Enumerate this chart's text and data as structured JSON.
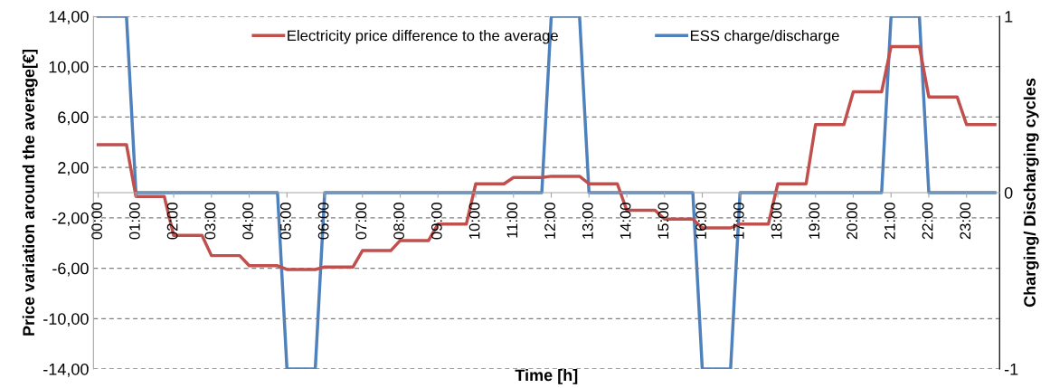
{
  "chart_data": {
    "type": "line",
    "xlabel": "Time [h]",
    "ylabel": "Price variation around the average[€]",
    "y2label": "Charging/ Discharging cycles",
    "categories": [
      "00:00",
      null,
      null,
      null,
      "01:00",
      null,
      null,
      null,
      "02:00",
      null,
      null,
      null,
      "03:00",
      null,
      null,
      null,
      "04:00",
      null,
      null,
      null,
      "05:00",
      null,
      null,
      null,
      "06:00",
      null,
      null,
      null,
      "07:00",
      null,
      null,
      null,
      "08:00",
      null,
      null,
      null,
      "09:00",
      null,
      null,
      null,
      "10:00",
      null,
      null,
      null,
      "11:00",
      null,
      null,
      null,
      "12:00",
      null,
      null,
      null,
      "13:00",
      null,
      null,
      null,
      "14:00",
      null,
      null,
      null,
      "15:00",
      null,
      null,
      null,
      "16:00",
      null,
      null,
      null,
      "17:00",
      null,
      null,
      null,
      "18:00",
      null,
      null,
      null,
      "19:00",
      null,
      null,
      null,
      "20:00",
      null,
      null,
      null,
      "21:00",
      null,
      null,
      null,
      "22:00",
      null,
      null,
      null,
      "23:00",
      null,
      null,
      null
    ],
    "series": [
      {
        "name": "Electricity price difference to the average",
        "color": "#c0504d",
        "values": [
          3.8,
          3.8,
          3.8,
          3.8,
          -0.3,
          -0.3,
          -0.3,
          -0.3,
          -3.4,
          -3.4,
          -3.4,
          -3.4,
          -5.0,
          -5.0,
          -5.0,
          -5.0,
          -5.8,
          -5.8,
          -5.8,
          -5.8,
          -6.1,
          -6.1,
          -6.1,
          -6.1,
          -5.9,
          -5.9,
          -5.9,
          -5.9,
          -4.6,
          -4.6,
          -4.6,
          -4.6,
          -3.8,
          -3.8,
          -3.8,
          -3.8,
          -2.5,
          -2.5,
          -2.5,
          -2.5,
          0.7,
          0.7,
          0.7,
          0.7,
          1.2,
          1.2,
          1.2,
          1.2,
          1.3,
          1.3,
          1.3,
          1.3,
          0.7,
          0.7,
          0.7,
          0.7,
          -1.4,
          -1.4,
          -1.4,
          -1.4,
          -2.1,
          -2.1,
          -2.1,
          -2.1,
          -2.8,
          -2.8,
          -2.8,
          -2.8,
          -2.5,
          -2.5,
          -2.5,
          -2.5,
          0.7,
          0.7,
          0.7,
          0.7,
          5.4,
          5.4,
          5.4,
          5.4,
          8.0,
          8.0,
          8.0,
          8.0,
          11.6,
          11.6,
          11.6,
          11.6,
          7.6,
          7.6,
          7.6,
          7.6,
          5.4,
          5.4,
          5.4,
          5.4
        ]
      },
      {
        "name": "ESS charge/discharge",
        "color": "#4f81bd",
        "axis": "y2",
        "values": [
          1,
          1,
          1,
          1,
          0,
          0,
          0,
          0,
          0,
          0,
          0,
          0,
          0,
          0,
          0,
          0,
          0,
          0,
          0,
          0,
          -1,
          -1,
          -1,
          -1,
          0,
          0,
          0,
          0,
          0,
          0,
          0,
          0,
          0,
          0,
          0,
          0,
          0,
          0,
          0,
          0,
          0,
          0,
          0,
          0,
          0,
          0,
          0,
          0,
          1,
          1,
          1,
          1,
          0,
          0,
          0,
          0,
          0,
          0,
          0,
          0,
          0,
          0,
          0,
          0,
          -1,
          -1,
          -1,
          -1,
          0,
          0,
          0,
          0,
          0,
          0,
          0,
          0,
          0,
          0,
          0,
          0,
          0,
          0,
          0,
          0,
          1,
          1,
          1,
          1,
          0,
          0,
          0,
          0,
          0,
          0,
          0,
          0
        ]
      }
    ],
    "ylim": [
      -14,
      14
    ],
    "yticks": [
      {
        "value": -14,
        "label": "-14,00"
      },
      {
        "value": -10,
        "label": "-10,00"
      },
      {
        "value": -6,
        "label": "-6,00"
      },
      {
        "value": -2,
        "label": "-2,00"
      },
      {
        "value": 2,
        "label": "2,00"
      },
      {
        "value": 6,
        "label": "6,00"
      },
      {
        "value": 10,
        "label": "10,00"
      },
      {
        "value": 14,
        "label": "14,00"
      }
    ],
    "y2lim": [
      -1,
      1
    ],
    "y2ticks": [
      -1,
      0,
      1
    ],
    "grid": "y",
    "legend": "top",
    "marker": "none",
    "line_style": "solid"
  }
}
